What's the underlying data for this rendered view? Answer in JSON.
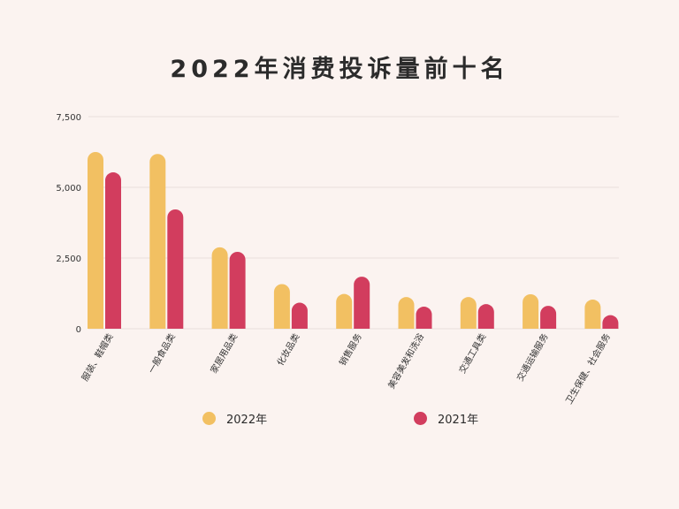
{
  "chart_data": {
    "type": "bar",
    "title": "2022年消费投诉量前十名",
    "categories": [
      "服装、鞋帽类",
      "一般食品类",
      "家居用品类",
      "化妆品类",
      "销售服务",
      "美容美发和洗浴",
      "交通工具类",
      "交通运输服务",
      "卫生保健、社会服务"
    ],
    "series": [
      {
        "name": "2022年",
        "color": "#f2c062",
        "values": [
          6250,
          6180,
          2880,
          1580,
          1230,
          1120,
          1120,
          1220,
          1030
        ]
      },
      {
        "name": "2021年",
        "color": "#d23d5e",
        "values": [
          5530,
          4220,
          2720,
          920,
          1840,
          780,
          870,
          810,
          480
        ]
      }
    ],
    "yticks": [
      "0",
      "2,500",
      "5,000",
      "7,500"
    ],
    "ytick_values": [
      0,
      2500,
      5000,
      7500
    ],
    "ylim": [
      0,
      7500
    ],
    "grid": true,
    "legend_position": "bottom"
  }
}
